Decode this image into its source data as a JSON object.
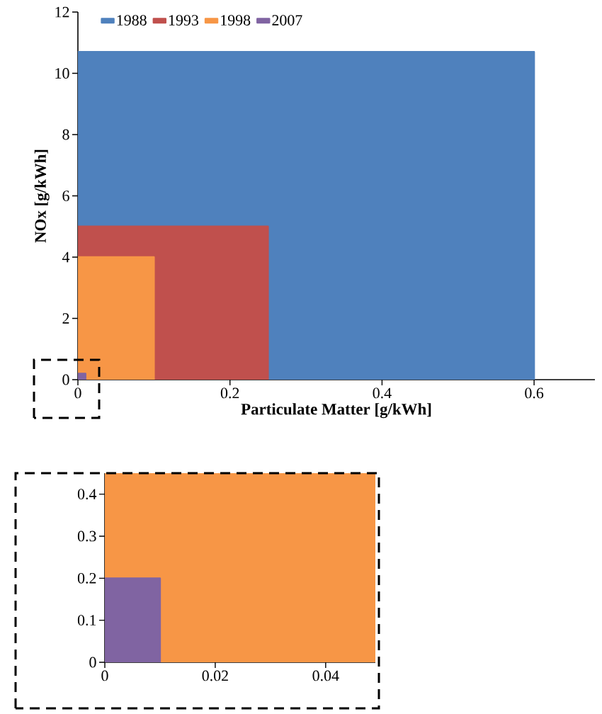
{
  "chart_data": [
    {
      "type": "area",
      "xlabel": "Particulate Matter [g/kWh]",
      "ylabel": "NOx [g/kWh]",
      "xlim": [
        0,
        0.68
      ],
      "ylim": [
        0,
        12
      ],
      "xticks": [
        0,
        0.2,
        0.4,
        0.6
      ],
      "yticks": [
        0,
        2,
        4,
        6,
        8,
        10,
        12
      ],
      "legend": "top",
      "series": [
        {
          "name": "1988",
          "color": "#4f81bd",
          "x": [
            0,
            0.6
          ],
          "values": [
            10.7,
            10.7
          ]
        },
        {
          "name": "1993",
          "color": "#c0504d",
          "x": [
            0,
            0.25
          ],
          "values": [
            5,
            5
          ]
        },
        {
          "name": "1998",
          "color": "#f79646",
          "x": [
            0,
            0.1
          ],
          "values": [
            4,
            4
          ]
        },
        {
          "name": "2007",
          "color": "#8064a2",
          "x": [
            0,
            0.01
          ],
          "values": [
            0.2,
            0.2
          ]
        }
      ]
    },
    {
      "type": "area",
      "xlim": [
        0,
        0.049
      ],
      "ylim": [
        0,
        0.45
      ],
      "xticks": [
        0,
        0.02,
        0.04
      ],
      "yticks": [
        0,
        0.1,
        0.2,
        0.3,
        0.4
      ],
      "bands": [
        {
          "axis": "y",
          "from": 0,
          "to": 0.45,
          "color": "#f79646"
        }
      ],
      "series": [
        {
          "color": "#8064a2",
          "x": [
            0,
            0.01
          ],
          "values": [
            0.2,
            0.2
          ]
        }
      ]
    }
  ]
}
